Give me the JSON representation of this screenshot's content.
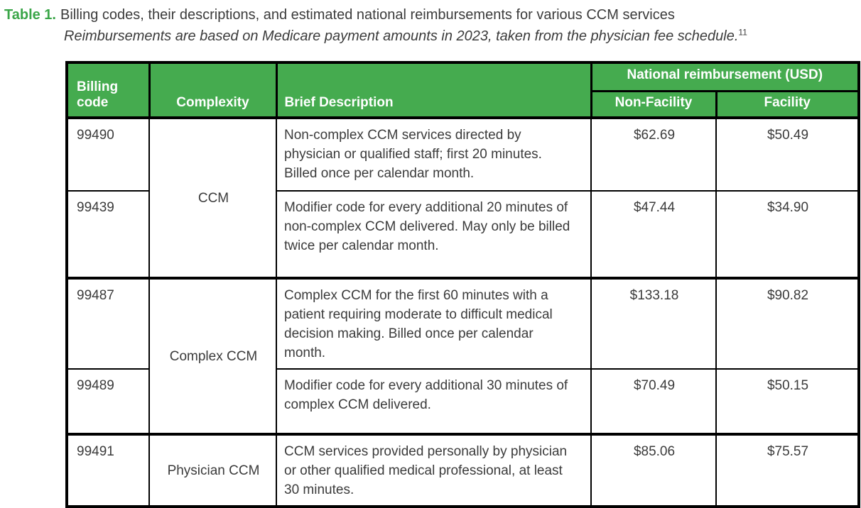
{
  "caption": {
    "label": "Table 1.",
    "title": "Billing codes, their descriptions, and estimated national reimbursements for various CCM services",
    "subtitle": "Reimbursements are based on Medicare payment amounts in 2023, taken from the physician fee schedule.",
    "footnote_ref": "11"
  },
  "colors": {
    "header_green": "#45ab4f",
    "label_green": "#3aa648",
    "border_black": "#000000",
    "text_gray": "#3b3b3b"
  },
  "table": {
    "headers": {
      "billing_code": "Billing code",
      "complexity": "Complexity",
      "description": "Brief Description",
      "reimbursement_group": "National reimbursement (USD)",
      "non_facility": "Non-Facility",
      "facility": "Facility"
    },
    "groups": [
      {
        "complexity": "CCM",
        "rows": [
          {
            "code": "99490",
            "description": "Non-complex CCM services directed by physician or qualified staff; first 20 minutes. Billed once per calendar month.",
            "non_facility": "$62.69",
            "facility": "$50.49"
          },
          {
            "code": "99439",
            "description": "Modifier code for every additional 20 minutes of non-complex CCM delivered. May only be billed twice per calendar month.",
            "non_facility": "$47.44",
            "facility": "$34.90"
          }
        ]
      },
      {
        "complexity": "Complex CCM",
        "rows": [
          {
            "code": "99487",
            "description": "Complex CCM for the first 60 minutes with a patient requiring moderate to difficult medical decision making. Billed once per calendar month.",
            "non_facility": "$133.18",
            "facility": "$90.82"
          },
          {
            "code": "99489",
            "description": "Modifier code for every additional 30 minutes of complex CCM delivered.",
            "non_facility": "$70.49",
            "facility": "$50.15"
          }
        ]
      },
      {
        "complexity": "Physician CCM",
        "rows": [
          {
            "code": "99491",
            "description": "CCM services provided personally by physician or other qualified medical professional, at least 30 minutes.",
            "non_facility": "$85.06",
            "facility": "$75.57"
          }
        ]
      }
    ]
  }
}
